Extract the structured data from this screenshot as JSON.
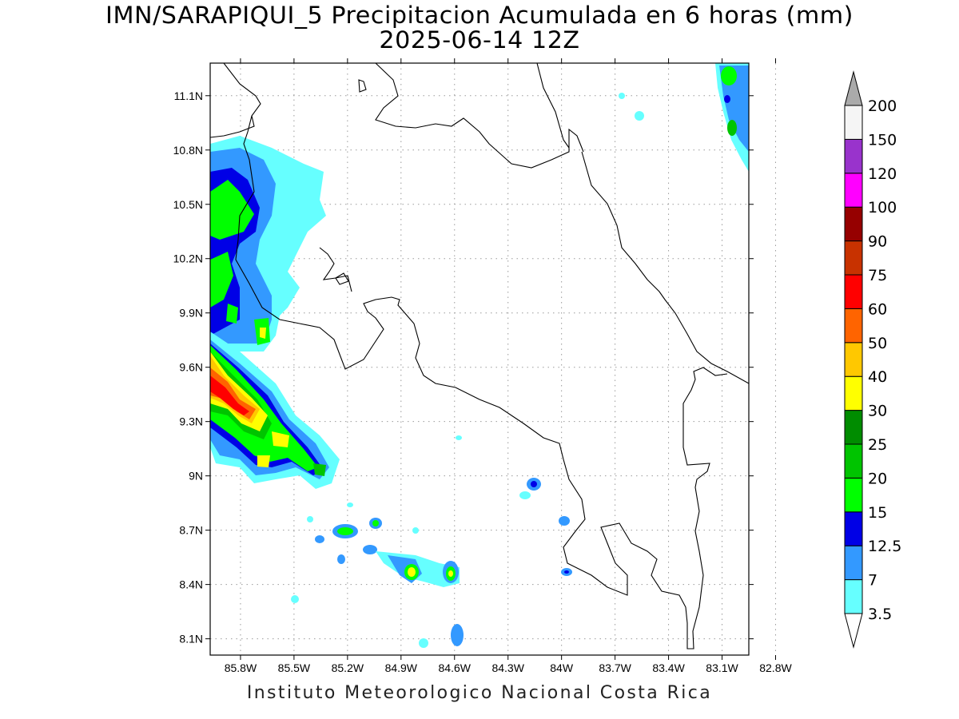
{
  "title_line1": "IMN/SARAPIQUI_5 Precipitacion Acumulada en 6 horas (mm)",
  "title_line2": "2025-06-14 12Z",
  "footer": "Instituto Meteorologico Nacional Costa Rica",
  "map": {
    "lon_range": [
      -85.97,
      -82.95
    ],
    "lat_range": [
      8.01,
      11.28
    ],
    "lat_ticks": [
      {
        "value": 11.1,
        "label": "11.1N"
      },
      {
        "value": 10.8,
        "label": "10.8N"
      },
      {
        "value": 10.5,
        "label": "10.5N"
      },
      {
        "value": 10.2,
        "label": "10.2N"
      },
      {
        "value": 9.9,
        "label": "9.9N"
      },
      {
        "value": 9.6,
        "label": "9.6N"
      },
      {
        "value": 9.3,
        "label": "9.3N"
      },
      {
        "value": 9.0,
        "label": "9N"
      },
      {
        "value": 8.7,
        "label": "8.7N"
      },
      {
        "value": 8.4,
        "label": "8.4N"
      },
      {
        "value": 8.1,
        "label": "8.1N"
      }
    ],
    "lon_ticks": [
      {
        "value": -85.8,
        "label": "85.8W"
      },
      {
        "value": -85.5,
        "label": "85.5W"
      },
      {
        "value": -85.2,
        "label": "85.2W"
      },
      {
        "value": -84.9,
        "label": "84.9W"
      },
      {
        "value": -84.6,
        "label": "84.6W"
      },
      {
        "value": -84.3,
        "label": "84.3W"
      },
      {
        "value": -84.0,
        "label": "84W"
      },
      {
        "value": -83.7,
        "label": "83.7W"
      },
      {
        "value": -83.4,
        "label": "83.4W"
      },
      {
        "value": -83.1,
        "label": "83.1W"
      },
      {
        "value": -82.8,
        "label": "82.8W"
      }
    ],
    "grid": true
  },
  "colorbar": {
    "levels": [
      "3.5",
      "7",
      "12.5",
      "15",
      "20",
      "25",
      "30",
      "40",
      "50",
      "60",
      "75",
      "90",
      "100",
      "120",
      "150",
      "200"
    ],
    "colors": [
      "#ffffff",
      "#66ffff",
      "#3399ff",
      "#0000e6",
      "#00ff00",
      "#00c400",
      "#008c00",
      "#ffff00",
      "#ffc800",
      "#ff6400",
      "#ff0000",
      "#c83200",
      "#960000",
      "#ff00ff",
      "#9933cc",
      "#f5f5f5",
      "#aaaaaa"
    ]
  }
}
